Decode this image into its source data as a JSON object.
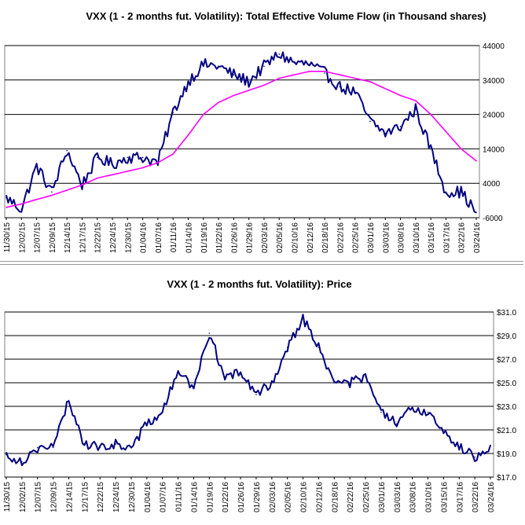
{
  "chart_data": [
    {
      "type": "line",
      "title": "VXX (1 - 2 months fut. Volatility): Total Effective Volume Flow (in Thousand shares)",
      "ylim": [
        -6000,
        44000
      ],
      "y_ticks": [
        44000,
        34000,
        24000,
        14000,
        4000,
        -6000
      ],
      "y_tick_labels": [
        "44000",
        "34000",
        "24000",
        "14000",
        "4000",
        "-6000"
      ],
      "y_axis_side": "right",
      "grid": "horizontal",
      "x_tick_labels": [
        "11/30/15",
        "12/02/15",
        "12/07/15",
        "12/09/15",
        "12/14/15",
        "12/17/15",
        "12/22/15",
        "12/24/15",
        "12/30/15",
        "01/04/16",
        "01/07/16",
        "01/11/16",
        "01/14/16",
        "01/19/16",
        "01/22/16",
        "01/26/16",
        "01/29/16",
        "02/03/16",
        "02/05/16",
        "02/10/16",
        "02/12/16",
        "02/18/16",
        "02/22/16",
        "02/25/16",
        "03/01/16",
        "03/03/16",
        "03/08/16",
        "03/10/16",
        "03/15/16",
        "03/17/16",
        "03/22/16",
        "03/24/16"
      ],
      "series": [
        {
          "color": "#000080",
          "x": [
            0,
            1,
            2,
            3,
            4,
            5,
            6,
            7,
            8,
            9,
            10,
            11,
            12,
            13,
            14,
            15,
            16,
            17,
            18,
            19,
            20,
            21,
            22,
            23,
            24,
            25,
            26,
            27,
            28,
            29,
            30,
            31
          ],
          "values": [
            -200,
            -3500,
            9000,
            1500,
            13500,
            3500,
            11500,
            9500,
            11500,
            11500,
            10000,
            24500,
            33500,
            38500,
            38000,
            35500,
            33500,
            38000,
            41500,
            39000,
            38500,
            36000,
            32000,
            30500,
            22000,
            18500,
            20500,
            25500,
            14000,
            1500,
            1500,
            -4500
          ]
        },
        {
          "color": "#ff00ff",
          "x": [
            0,
            1,
            2,
            3,
            4,
            5,
            6,
            7,
            8,
            9,
            10,
            11,
            12,
            13,
            14,
            15,
            16,
            17,
            18,
            19,
            20,
            21,
            22,
            23,
            24,
            25,
            26,
            27,
            28,
            29,
            30,
            31
          ],
          "values": [
            -3000,
            -2000,
            -700,
            500,
            2000,
            3500,
            5500,
            6500,
            7500,
            8500,
            10000,
            12500,
            18000,
            24000,
            27500,
            29500,
            31000,
            32500,
            34500,
            35500,
            36500,
            36500,
            35500,
            34500,
            33500,
            31500,
            29500,
            28000,
            24000,
            19000,
            14000,
            10500
          ]
        }
      ]
    },
    {
      "type": "line",
      "title": "VXX (1 - 2 months fut. Volatility): Price",
      "ylim": [
        17,
        31
      ],
      "y_ticks": [
        31,
        29,
        27,
        25,
        23,
        21,
        19,
        17
      ],
      "y_tick_labels": [
        "$31.0",
        "$29.0",
        "$27.0",
        "$25.0",
        "$23.0",
        "$21.0",
        "$19.0",
        "$17.0"
      ],
      "y_axis_side": "right",
      "grid": "horizontal",
      "x_tick_labels": [
        "11/30/15",
        "12/02/15",
        "12/07/15",
        "12/09/15",
        "12/14/15",
        "12/17/15",
        "12/22/15",
        "12/24/15",
        "12/30/15",
        "01/04/16",
        "01/07/16",
        "01/11/16",
        "01/14/16",
        "01/19/16",
        "01/22/16",
        "01/26/16",
        "01/29/16",
        "02/03/16",
        "02/05/16",
        "02/10/16",
        "02/12/16",
        "02/18/16",
        "02/22/16",
        "02/25/16",
        "03/01/16",
        "03/03/16",
        "03/08/16",
        "03/10/16",
        "03/15/16",
        "03/17/16",
        "03/22/16",
        "03/24/16"
      ],
      "series": [
        {
          "color": "#000080",
          "x": [
            0,
            1,
            2,
            3,
            4,
            5,
            6,
            7,
            8,
            9,
            10,
            11,
            12,
            13,
            14,
            15,
            16,
            17,
            18,
            19,
            20,
            21,
            22,
            23,
            24,
            25,
            26,
            27,
            28,
            29,
            30,
            31
          ],
          "values": [
            18.9,
            18.3,
            19.5,
            19.5,
            23.5,
            19.8,
            19.5,
            19.8,
            19.5,
            21.5,
            22.5,
            26.0,
            24.5,
            29.2,
            25.5,
            25.8,
            24.0,
            25.0,
            28.0,
            30.5,
            28.0,
            25.0,
            25.0,
            25.5,
            22.5,
            21.5,
            22.8,
            22.5,
            21.0,
            19.5,
            18.7,
            19.7
          ]
        }
      ]
    }
  ]
}
